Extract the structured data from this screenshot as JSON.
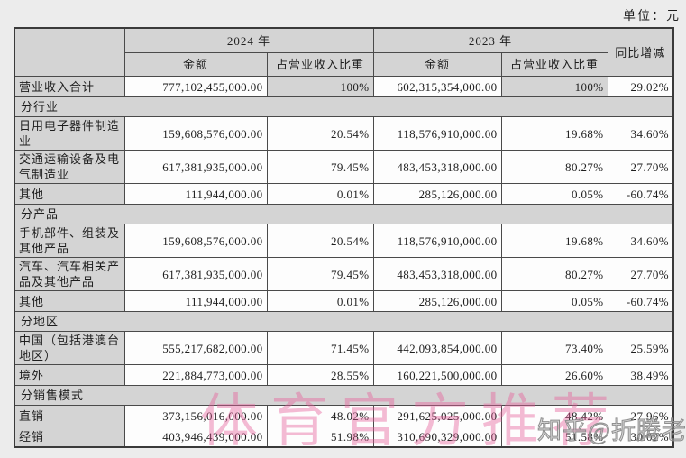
{
  "page": {
    "unit_label": "单位：元"
  },
  "table": {
    "header": {
      "year_2024": "2024 年",
      "year_2023": "2023 年",
      "yoy": "同比增减",
      "amount": "金额",
      "share": "占营业收入比重"
    },
    "rows": [
      {
        "type": "data",
        "label": "营业收入合计",
        "amount_2024": "777,102,455,000.00",
        "share_2024": "100%",
        "amount_2023": "602,315,354,000.00",
        "share_2023": "100%",
        "yoy": "29.02%",
        "shade_share": true
      },
      {
        "type": "section",
        "label": "分行业"
      },
      {
        "type": "data",
        "label": "日用电子器件制造业",
        "amount_2024": "159,608,576,000.00",
        "share_2024": "20.54%",
        "amount_2023": "118,576,910,000.00",
        "share_2023": "19.68%",
        "yoy": "34.60%"
      },
      {
        "type": "data",
        "label": "交通运输设备及电气制造业",
        "amount_2024": "617,381,935,000.00",
        "share_2024": "79.45%",
        "amount_2023": "483,453,318,000.00",
        "share_2023": "80.27%",
        "yoy": "27.70%"
      },
      {
        "type": "data",
        "label": "其他",
        "amount_2024": "111,944,000.00",
        "share_2024": "0.01%",
        "amount_2023": "285,126,000.00",
        "share_2023": "0.05%",
        "yoy": "-60.74%"
      },
      {
        "type": "section",
        "label": "分产品"
      },
      {
        "type": "data",
        "label": "手机部件、组装及其他产品",
        "amount_2024": "159,608,576,000.00",
        "share_2024": "20.54%",
        "amount_2023": "118,576,910,000.00",
        "share_2023": "19.68%",
        "yoy": "34.60%"
      },
      {
        "type": "data",
        "label": "汽车、汽车相关产品及其他产品",
        "amount_2024": "617,381,935,000.00",
        "share_2024": "79.45%",
        "amount_2023": "483,453,318,000.00",
        "share_2023": "80.27%",
        "yoy": "27.70%"
      },
      {
        "type": "data",
        "label": "其他",
        "amount_2024": "111,944,000.00",
        "share_2024": "0.01%",
        "amount_2023": "285,126,000.00",
        "share_2023": "0.05%",
        "yoy": "-60.74%"
      },
      {
        "type": "section",
        "label": "分地区"
      },
      {
        "type": "data",
        "label": "中国（包括港澳台地区）",
        "amount_2024": "555,217,682,000.00",
        "share_2024": "71.45%",
        "amount_2023": "442,093,854,000.00",
        "share_2023": "73.40%",
        "yoy": "25.59%"
      },
      {
        "type": "data",
        "label": "境外",
        "amount_2024": "221,884,773,000.00",
        "share_2024": "28.55%",
        "amount_2023": "160,221,500,000.00",
        "share_2023": "26.60%",
        "yoy": "38.49%"
      },
      {
        "type": "section",
        "label": "分销售模式"
      },
      {
        "type": "data",
        "label": "直销",
        "amount_2024": "373,156,016,000.00",
        "share_2024": "48.02%",
        "amount_2023": "291,625,025,000.00",
        "share_2023": "48.42%",
        "yoy": "27.96%"
      },
      {
        "type": "data",
        "label": "经销",
        "amount_2024": "403,946,439,000.00",
        "share_2024": "51.98%",
        "amount_2023": "310,690,329,000.00",
        "share_2023": "51.58%",
        "yoy": "30.02%"
      }
    ]
  },
  "watermarks": {
    "pink_text": "体育官方推荐",
    "gray_text": "知乎@折腾老Z"
  },
  "colors": {
    "cell_gray": "#d4d4d4",
    "page_background": "#ececec",
    "watermark_pink": "#e75f9b",
    "watermark_gray": "#8f8f8f"
  }
}
